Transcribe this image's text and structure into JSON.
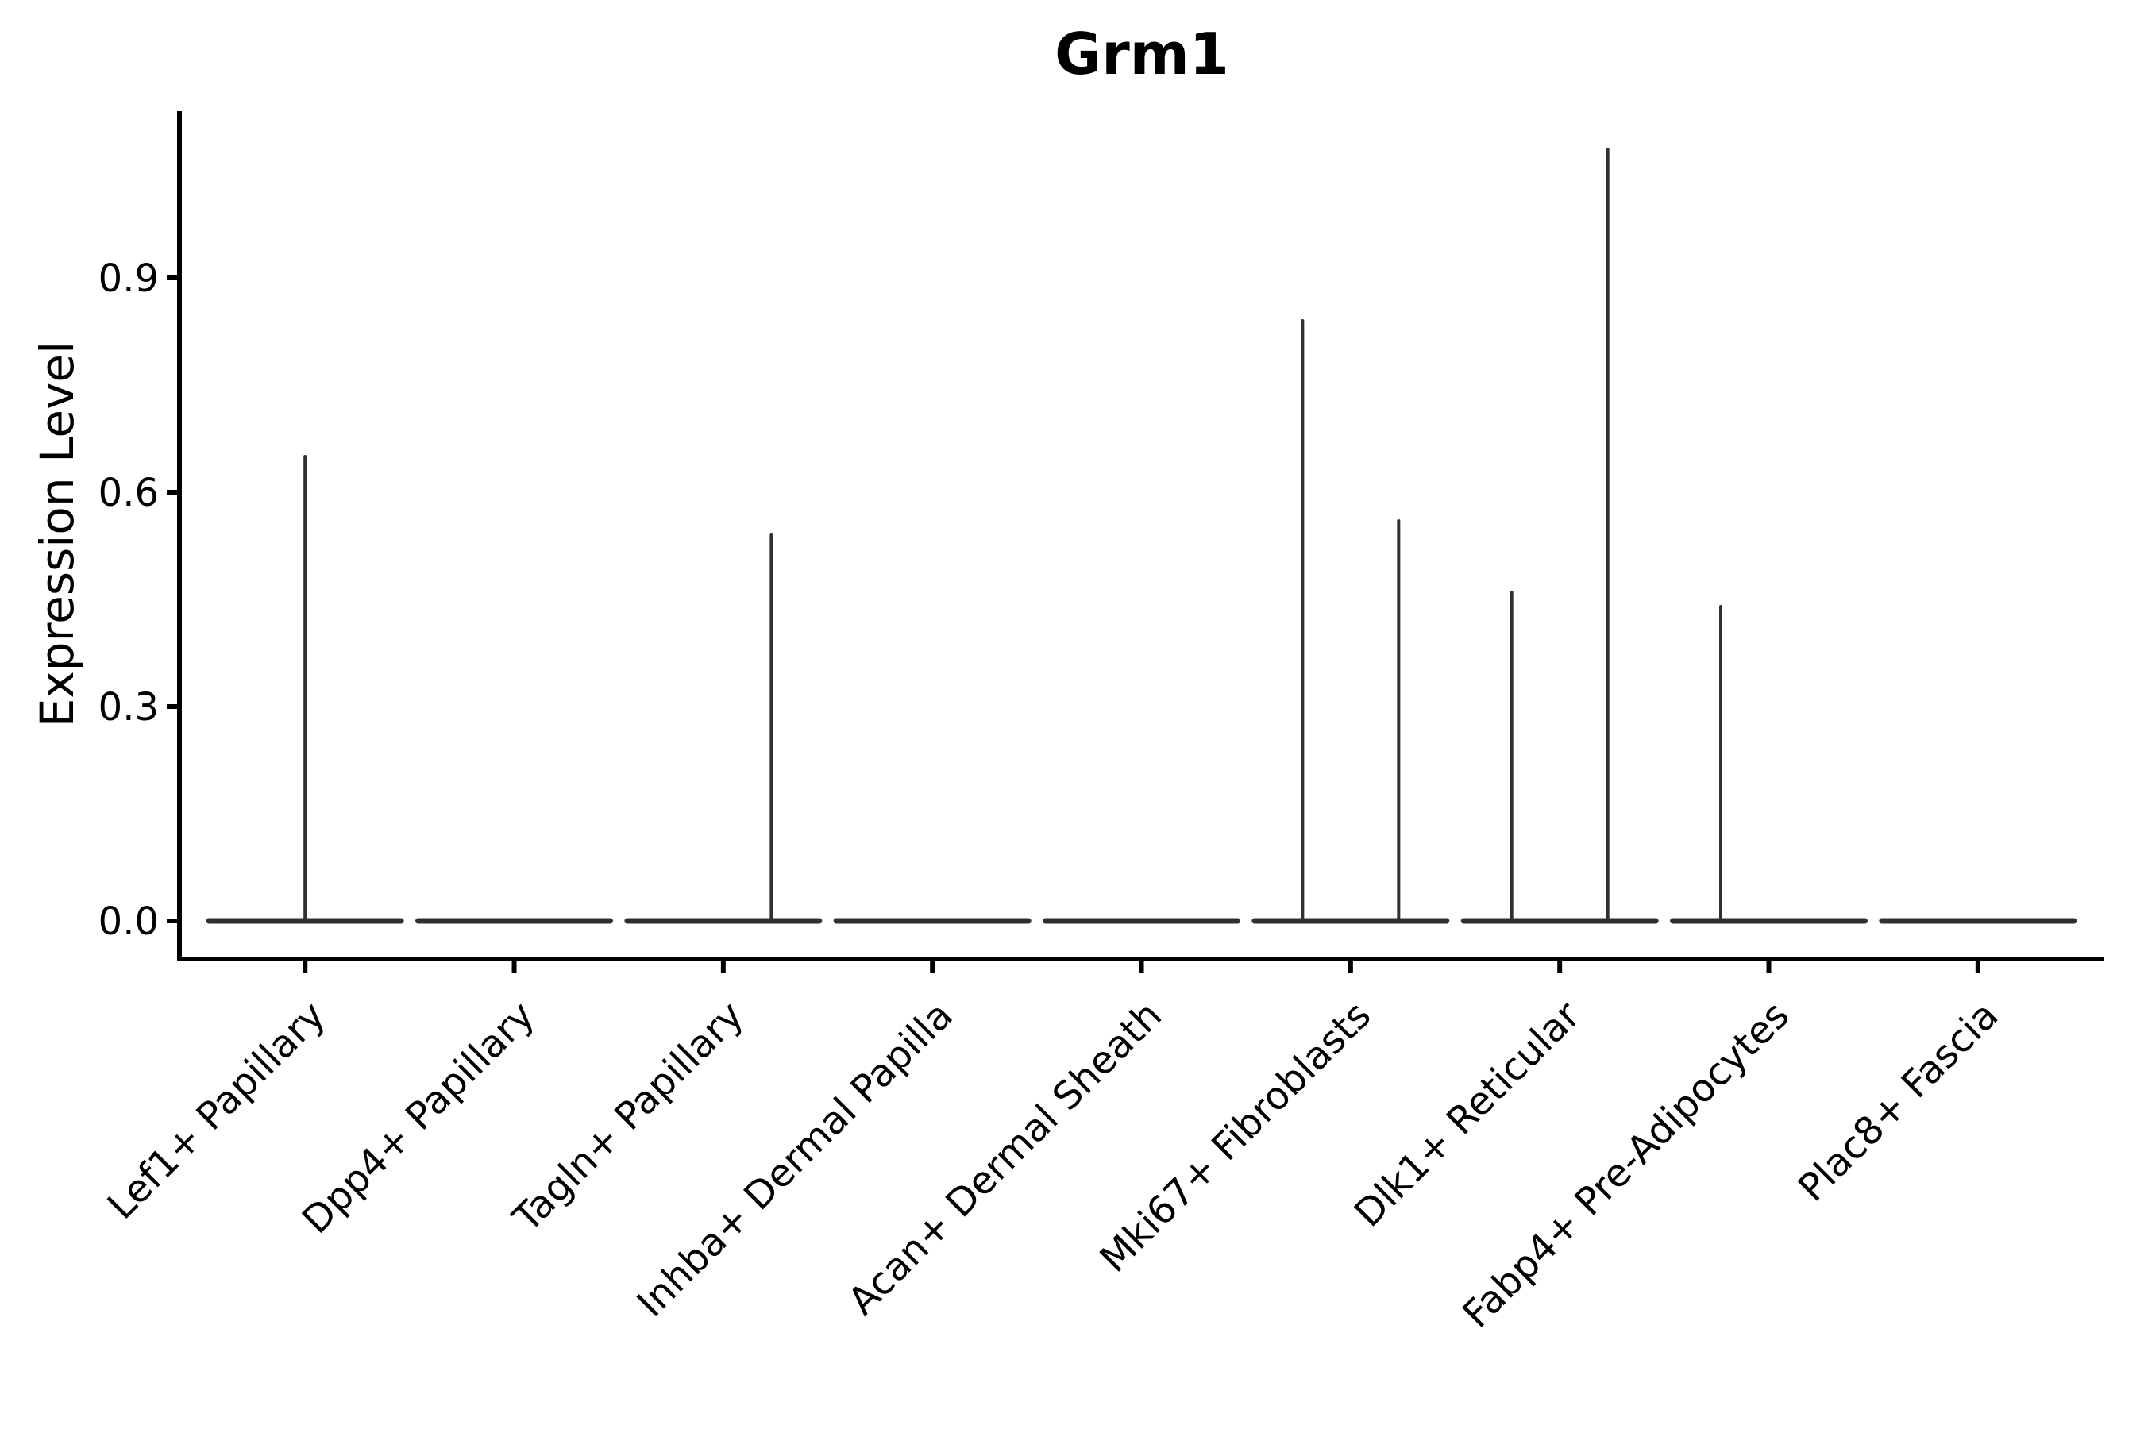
{
  "page": {
    "background": "#ffffff"
  },
  "chart_data": {
    "type": "violin",
    "title": "Grm1",
    "xlabel": "",
    "ylabel": "Expression Level",
    "yticks": [
      {
        "value": 0.0,
        "label": "0.0"
      },
      {
        "value": 0.3,
        "label": "0.3"
      },
      {
        "value": 0.6,
        "label": "0.6"
      },
      {
        "value": 0.9,
        "label": "0.9"
      }
    ],
    "ylim": [
      -0.05,
      1.13
    ],
    "grid": false,
    "legend_position": "none",
    "categories": [
      "Lef1+ Papillary",
      "Dpp4+ Papillary",
      "Tagln+ Papillary",
      "Inhba+ Dermal Papilla",
      "Acan+ Dermal Sheath",
      "Mki67+ Fibroblasts",
      "Dlk1+ Reticular",
      "Fabp4+ Pre-Adipocytes",
      "Plac8+ Fascia"
    ],
    "violins": [
      {
        "category": "Lef1+ Papillary",
        "base_value": 0.0,
        "spikes": [
          {
            "offset": "center",
            "value": 0.65
          }
        ]
      },
      {
        "category": "Dpp4+ Papillary",
        "base_value": 0.0,
        "spikes": []
      },
      {
        "category": "Tagln+ Papillary",
        "base_value": 0.0,
        "spikes": [
          {
            "offset": "right",
            "value": 0.54
          }
        ]
      },
      {
        "category": "Inhba+ Dermal Papilla",
        "base_value": 0.0,
        "spikes": []
      },
      {
        "category": "Acan+ Dermal Sheath",
        "base_value": 0.0,
        "spikes": []
      },
      {
        "category": "Mki67+ Fibroblasts",
        "base_value": 0.0,
        "spikes": [
          {
            "offset": "left",
            "value": 0.84
          },
          {
            "offset": "right",
            "value": 0.56
          }
        ]
      },
      {
        "category": "Dlk1+ Reticular",
        "base_value": 0.0,
        "spikes": [
          {
            "offset": "left",
            "value": 0.46
          },
          {
            "offset": "right",
            "value": 1.08
          }
        ]
      },
      {
        "category": "Fabp4+ Pre-Adipocytes",
        "base_value": 0.0,
        "spikes": [
          {
            "offset": "left",
            "value": 0.44
          }
        ]
      },
      {
        "category": "Plac8+ Fascia",
        "base_value": 0.0,
        "spikes": []
      }
    ],
    "colors": {
      "violin_stroke": "#303030",
      "axis": "#000000",
      "text": "#000000",
      "background": "#ffffff"
    }
  }
}
